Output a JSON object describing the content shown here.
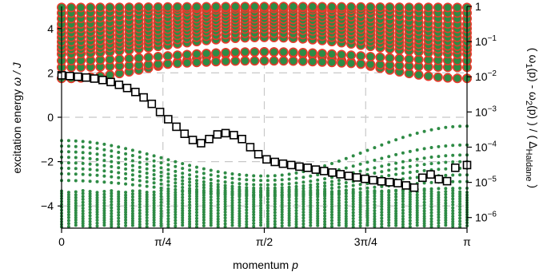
{
  "chart_data": {
    "type": "scatter",
    "title": "",
    "grid": true,
    "x": {
      "label_prefix": "momentum ",
      "label_var": "p",
      "range": [
        0,
        3.14159
      ],
      "ticks": [
        {
          "value": 0,
          "label": "0"
        },
        {
          "value": 0.785398,
          "label": "π/4"
        },
        {
          "value": 1.570796,
          "label": "π/2"
        },
        {
          "value": 2.356194,
          "label": "3π/4"
        },
        {
          "value": 3.141593,
          "label": "π"
        }
      ]
    },
    "y_left": {
      "label_prefix": "excitation energy ",
      "label_var": "ω / J",
      "range": [
        -5,
        5
      ],
      "ticks": [
        {
          "value": 4,
          "label": "4"
        },
        {
          "value": 2,
          "label": "2"
        },
        {
          "value": 0,
          "label": "0"
        },
        {
          "value": -2,
          "label": "−2"
        },
        {
          "value": -4,
          "label": "−4"
        }
      ]
    },
    "y_right": {
      "label_parts": [
        "( ω",
        "1",
        "(p) - ω",
        "2",
        "(p) ) / ( Δ",
        "Haldane",
        " )"
      ],
      "scale": "log",
      "range": [
        5e-07,
        1
      ],
      "ticks": [
        {
          "value": 1,
          "label_base": "1",
          "label_exp": ""
        },
        {
          "value": 0.1,
          "label_base": "10",
          "label_exp": "−1"
        },
        {
          "value": 0.01,
          "label_base": "10",
          "label_exp": "−2"
        },
        {
          "value": 0.001,
          "label_base": "10",
          "label_exp": "−3"
        },
        {
          "value": 0.0001,
          "label_base": "10",
          "label_exp": "−4"
        },
        {
          "value": 1e-05,
          "label_base": "10",
          "label_exp": "−5"
        },
        {
          "value": 1e-06,
          "label_base": "10",
          "label_exp": "−6"
        }
      ]
    },
    "series": [
      {
        "marker": "red-ringed green circle",
        "axis": "left",
        "color_fill": "#2e8b45",
        "color_edge": "#e8392b",
        "curves": [
          {
            "a": 1.75,
            "b": 2.95
          },
          {
            "a": 2.25,
            "b": 2.55
          },
          {
            "a": 2.55,
            "b": 2.95
          },
          {
            "a": 2.85,
            "b": 3.6
          },
          {
            "a": 3.05,
            "b": 3.8
          },
          {
            "a": 3.2,
            "b": 4.0
          },
          {
            "a": 3.4,
            "b": 4.15
          },
          {
            "a": 3.6,
            "b": 4.3
          },
          {
            "a": 3.8,
            "b": 4.45
          },
          {
            "a": 4.0,
            "b": 4.6
          },
          {
            "a": 4.2,
            "b": 4.75
          },
          {
            "a": 4.45,
            "b": 4.9
          },
          {
            "a": 4.7,
            "b": 4.98
          },
          {
            "a": 4.95,
            "b": 4.99
          }
        ]
      },
      {
        "marker": "green dot",
        "axis": "left",
        "color_fill": "#2e8b45",
        "curves": [
          {
            "y0": -1.05,
            "ymid": -2.65,
            "yend": -0.4
          },
          {
            "y0": -1.3,
            "ymid": -2.85,
            "yend": -1.25
          },
          {
            "y0": -1.55,
            "ymid": -3.05,
            "yend": -1.7
          },
          {
            "y0": -1.8,
            "ymid": -3.2,
            "yend": -2.0
          },
          {
            "y0": -2.05,
            "ymid": -3.3,
            "yend": -2.3
          },
          {
            "y0": -2.3,
            "ymid": -3.4,
            "yend": -2.6
          },
          {
            "y0": -2.55,
            "ymid": -3.5,
            "yend": -2.9
          },
          {
            "y0": -2.85,
            "ymid": -3.55,
            "yend": -3.2
          }
        ],
        "band": {
          "from": -3.35,
          "to": -5.0,
          "step": 0.12
        }
      },
      {
        "marker": "open square",
        "axis": "right",
        "color_edge": "#000000",
        "x": [
          0.0,
          0.0636,
          0.1271,
          0.1907,
          0.2542,
          0.3178,
          0.3813,
          0.4449,
          0.5084,
          0.572,
          0.6355,
          0.6991,
          0.7626,
          0.8262,
          0.8897,
          0.9533,
          1.0168,
          1.0804,
          1.1439,
          1.2075,
          1.271,
          1.3346,
          1.3981,
          1.4617,
          1.5252,
          1.5888,
          1.6523,
          1.7159,
          1.7794,
          1.843,
          1.9065,
          1.9701,
          2.0336,
          2.0972,
          2.1607,
          2.2243,
          2.2878,
          2.3514,
          2.4149,
          2.4785,
          2.542,
          2.6056,
          2.6691,
          2.7327,
          2.7962,
          2.8598,
          2.9233,
          2.9869,
          3.0504,
          3.1416
        ],
        "values": [
          0.011,
          0.0105,
          0.01,
          0.0095,
          0.0089,
          0.0081,
          0.0071,
          0.0059,
          0.0048,
          0.0037,
          0.0026,
          0.0017,
          0.001,
          0.00062,
          0.00038,
          0.00024,
          0.00016,
          0.00013,
          0.00017,
          0.00023,
          0.00025,
          0.00022,
          0.00017,
          0.0001,
          6.3e-05,
          4.5e-05,
          3.8e-05,
          3.4e-05,
          3.1e-05,
          2.8e-05,
          2.6e-05,
          2.3e-05,
          2.1e-05,
          1.9e-05,
          1.7e-05,
          1.53e-05,
          1.38e-05,
          1.26e-05,
          1.15e-05,
          1.07e-05,
          1.01e-05,
          9.5e-06,
          8.2e-06,
          7.1e-06,
          1.35e-05,
          1.68e-05,
          1.23e-05,
          1.08e-05,
          2.6e-05,
          3.1e-05
        ]
      }
    ]
  }
}
